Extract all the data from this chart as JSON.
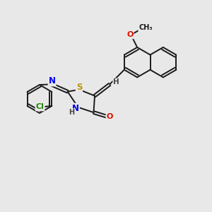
{
  "background_color": "#e8e8e8",
  "bond_color": "#1a1a1a",
  "bond_width": 1.4,
  "atom_colors": {
    "S": "#b8960a",
    "N": "#0000ee",
    "O": "#dd1100",
    "Cl": "#228800",
    "H": "#444444",
    "C": "#1a1a1a"
  },
  "dbo": 0.06
}
